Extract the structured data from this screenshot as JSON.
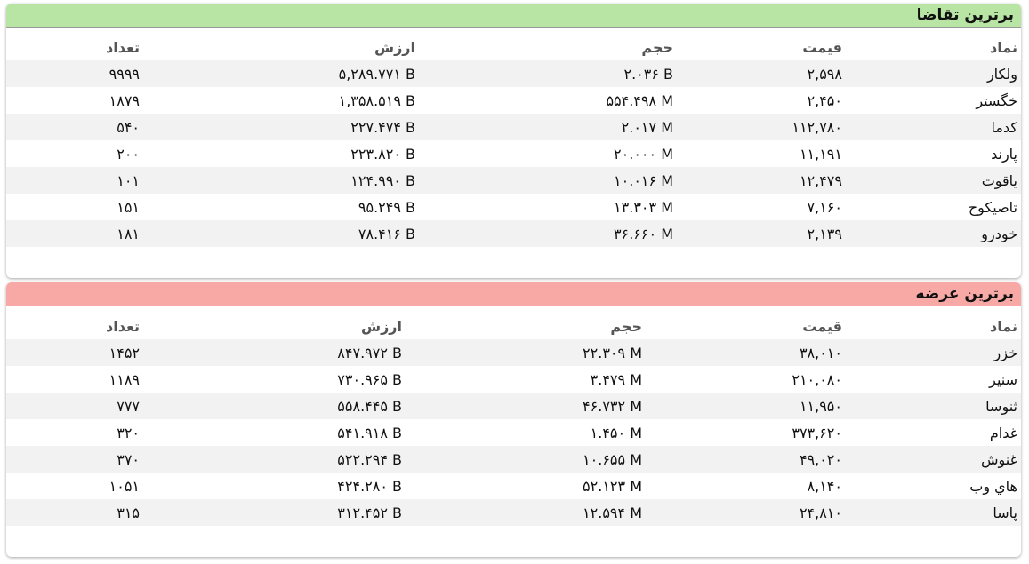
{
  "demand": {
    "title": "برترین تقاضا",
    "headers": {
      "symbol": "نماد",
      "price": "قیمت",
      "volume": "حجم",
      "value": "ارزش",
      "count": "تعداد"
    },
    "rows": [
      {
        "symbol": "ولکار",
        "price": "۲,۵۹۸",
        "volume": "۲.۰۳۶ B",
        "value": "۵,۲۸۹.۷۷۱ B",
        "count": "۹۹۹۹"
      },
      {
        "symbol": "خگستر",
        "price": "۲,۴۵۰",
        "volume": "۵۵۴.۴۹۸ M",
        "value": "۱,۳۵۸.۵۱۹ B",
        "count": "۱۸۷۹"
      },
      {
        "symbol": "کدما",
        "price": "۱۱۲,۷۸۰",
        "volume": "۲.۰۱۷ M",
        "value": "۲۲۷.۴۷۴ B",
        "count": "۵۴۰"
      },
      {
        "symbol": "پارند",
        "price": "۱۱,۱۹۱",
        "volume": "۲۰.۰۰۰ M",
        "value": "۲۲۳.۸۲۰ B",
        "count": "۲۰۰"
      },
      {
        "symbol": "یاقوت",
        "price": "۱۲,۴۷۹",
        "volume": "۱۰.۰۱۶ M",
        "value": "۱۲۴.۹۹۰ B",
        "count": "۱۰۱"
      },
      {
        "symbol": "تاصیکوح",
        "price": "۷,۱۶۰",
        "volume": "۱۳.۳۰۳ M",
        "value": "۹۵.۲۴۹ B",
        "count": "۱۵۱"
      },
      {
        "symbol": "خودرو",
        "price": "۲,۱۳۹",
        "volume": "۳۶.۶۶۰ M",
        "value": "۷۸.۴۱۶ B",
        "count": "۱۸۱"
      }
    ]
  },
  "supply": {
    "title": "برترین عرضه",
    "headers": {
      "symbol": "نماد",
      "price": "قیمت",
      "volume": "حجم",
      "value": "ارزش",
      "count": "تعداد"
    },
    "rows": [
      {
        "symbol": "خزر",
        "price": "۳۸,۰۱۰",
        "volume": "۲۲.۳۰۹ M",
        "value": "۸۴۷.۹۷۲ B",
        "count": "۱۴۵۲"
      },
      {
        "symbol": "سنیر",
        "price": "۲۱۰,۰۸۰",
        "volume": "۳.۴۷۹ M",
        "value": "۷۳۰.۹۶۵ B",
        "count": "۱۱۸۹"
      },
      {
        "symbol": "ثنوسا",
        "price": "۱۱,۹۵۰",
        "volume": "۴۶.۷۳۲ M",
        "value": "۵۵۸.۴۴۵ B",
        "count": "۷۷۷"
      },
      {
        "symbol": "غدام",
        "price": "۳۷۳,۶۲۰",
        "volume": "۱.۴۵۰ M",
        "value": "۵۴۱.۹۱۸ B",
        "count": "۳۲۰"
      },
      {
        "symbol": "غنوش",
        "price": "۴۹,۰۲۰",
        "volume": "۱۰.۶۵۵ M",
        "value": "۵۲۲.۲۹۴ B",
        "count": "۳۷۰"
      },
      {
        "symbol": "هاي وب",
        "price": "۸,۱۴۰",
        "volume": "۵۲.۱۲۳ M",
        "value": "۴۲۴.۲۸۰ B",
        "count": "۱۰۵۱"
      },
      {
        "symbol": "پاسا",
        "price": "۲۴,۸۱۰",
        "volume": "۱۲.۵۹۴ M",
        "value": "۳۱۲.۴۵۲ B",
        "count": "۳۱۵"
      }
    ]
  },
  "colors": {
    "demand_header": "#b8e4a4",
    "supply_header": "#f8a9a6",
    "stripe": "#f2f2f2"
  }
}
